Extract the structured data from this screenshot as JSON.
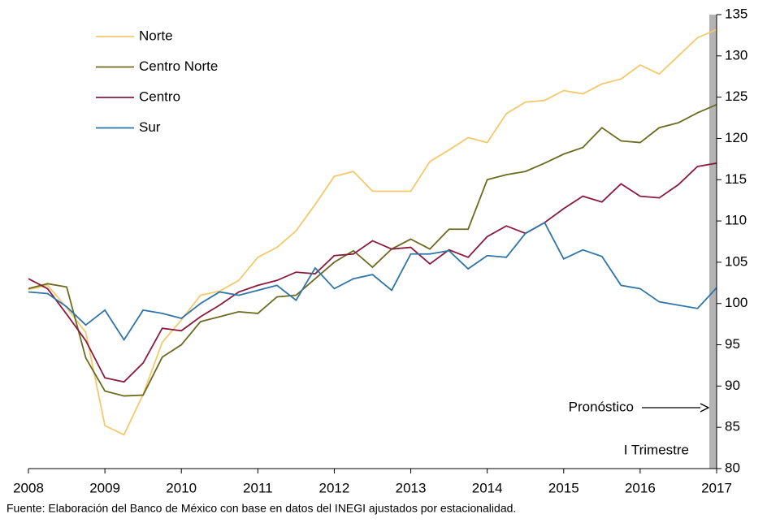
{
  "chart_data": {
    "type": "line",
    "x": [
      2008,
      2008.25,
      2008.5,
      2008.75,
      2009,
      2009.25,
      2009.5,
      2009.75,
      2010,
      2010.25,
      2010.5,
      2010.75,
      2011,
      2011.25,
      2011.5,
      2011.75,
      2012,
      2012.25,
      2012.5,
      2012.75,
      2013,
      2013.25,
      2013.5,
      2013.75,
      2014,
      2014.25,
      2014.5,
      2014.75,
      2015,
      2015.25,
      2015.5,
      2015.75,
      2016,
      2016.25,
      2016.5,
      2016.75,
      2017
    ],
    "series": [
      {
        "name": "Norte",
        "color": "#f5c96b",
        "values": [
          101.7,
          102.2,
          99.5,
          96.5,
          85.2,
          84.1,
          89,
          95.3,
          98,
          101,
          101.5,
          102.8,
          105.6,
          106.8,
          108.8,
          112,
          115.4,
          116,
          113.6,
          113.6,
          113.6,
          117.2,
          118.6,
          120.1,
          119.5,
          123,
          124.4,
          124.6,
          125.8,
          125.4,
          126.6,
          127.2,
          128.9,
          127.8,
          130,
          132.2,
          133.2
        ]
      },
      {
        "name": "Centro Norte",
        "color": "#6b6b1f",
        "values": [
          101.8,
          102.4,
          102,
          93.4,
          89.4,
          88.8,
          88.9,
          93.5,
          95,
          97.8,
          98.4,
          99,
          98.8,
          100.8,
          101,
          103,
          105,
          106.4,
          104.4,
          106.6,
          107.8,
          106.6,
          109,
          109,
          115,
          115.6,
          116,
          117,
          118.1,
          118.9,
          121.3,
          119.7,
          119.5,
          121.3,
          121.9,
          123.1,
          124.1
        ]
      },
      {
        "name": "Centro",
        "color": "#8b1a3f",
        "values": [
          103,
          101.8,
          98.7,
          95.5,
          91,
          90.5,
          92.8,
          97,
          96.7,
          98.4,
          99.8,
          101.4,
          102.2,
          102.8,
          103.8,
          103.6,
          105.8,
          106,
          107.6,
          106.6,
          106.8,
          104.8,
          106.5,
          105.6,
          108.1,
          109.4,
          108.5,
          109.8,
          111.5,
          113,
          112.3,
          114.5,
          113,
          112.8,
          114.4,
          116.6,
          117
        ]
      },
      {
        "name": "Sur",
        "color": "#2e75a8",
        "values": [
          101.4,
          101.2,
          99.6,
          97.4,
          99.2,
          95.6,
          99.2,
          98.8,
          98.2,
          100,
          101.4,
          101,
          101.6,
          102.2,
          100.4,
          104.3,
          101.8,
          103,
          103.5,
          101.6,
          106,
          106,
          106.4,
          104.2,
          105.8,
          105.6,
          108.5,
          109.8,
          105.4,
          106.5,
          105.7,
          102.2,
          101.8,
          100.2,
          99.8,
          99.4,
          101.9
        ]
      }
    ],
    "xlim": [
      2008,
      2017
    ],
    "xticks": [
      2008,
      2009,
      2010,
      2011,
      2012,
      2013,
      2014,
      2015,
      2016,
      2017
    ],
    "ylim": [
      80,
      135
    ],
    "yticks": [
      80,
      85,
      90,
      95,
      100,
      105,
      110,
      115,
      120,
      125,
      130,
      135
    ],
    "annotations": [
      "Pronóstico",
      "I Trimestre"
    ],
    "source": "Fuente: Elaboración del Banco de México con base en datos del INEGI ajustados por estacionalidad.",
    "legend": "upper-left"
  }
}
